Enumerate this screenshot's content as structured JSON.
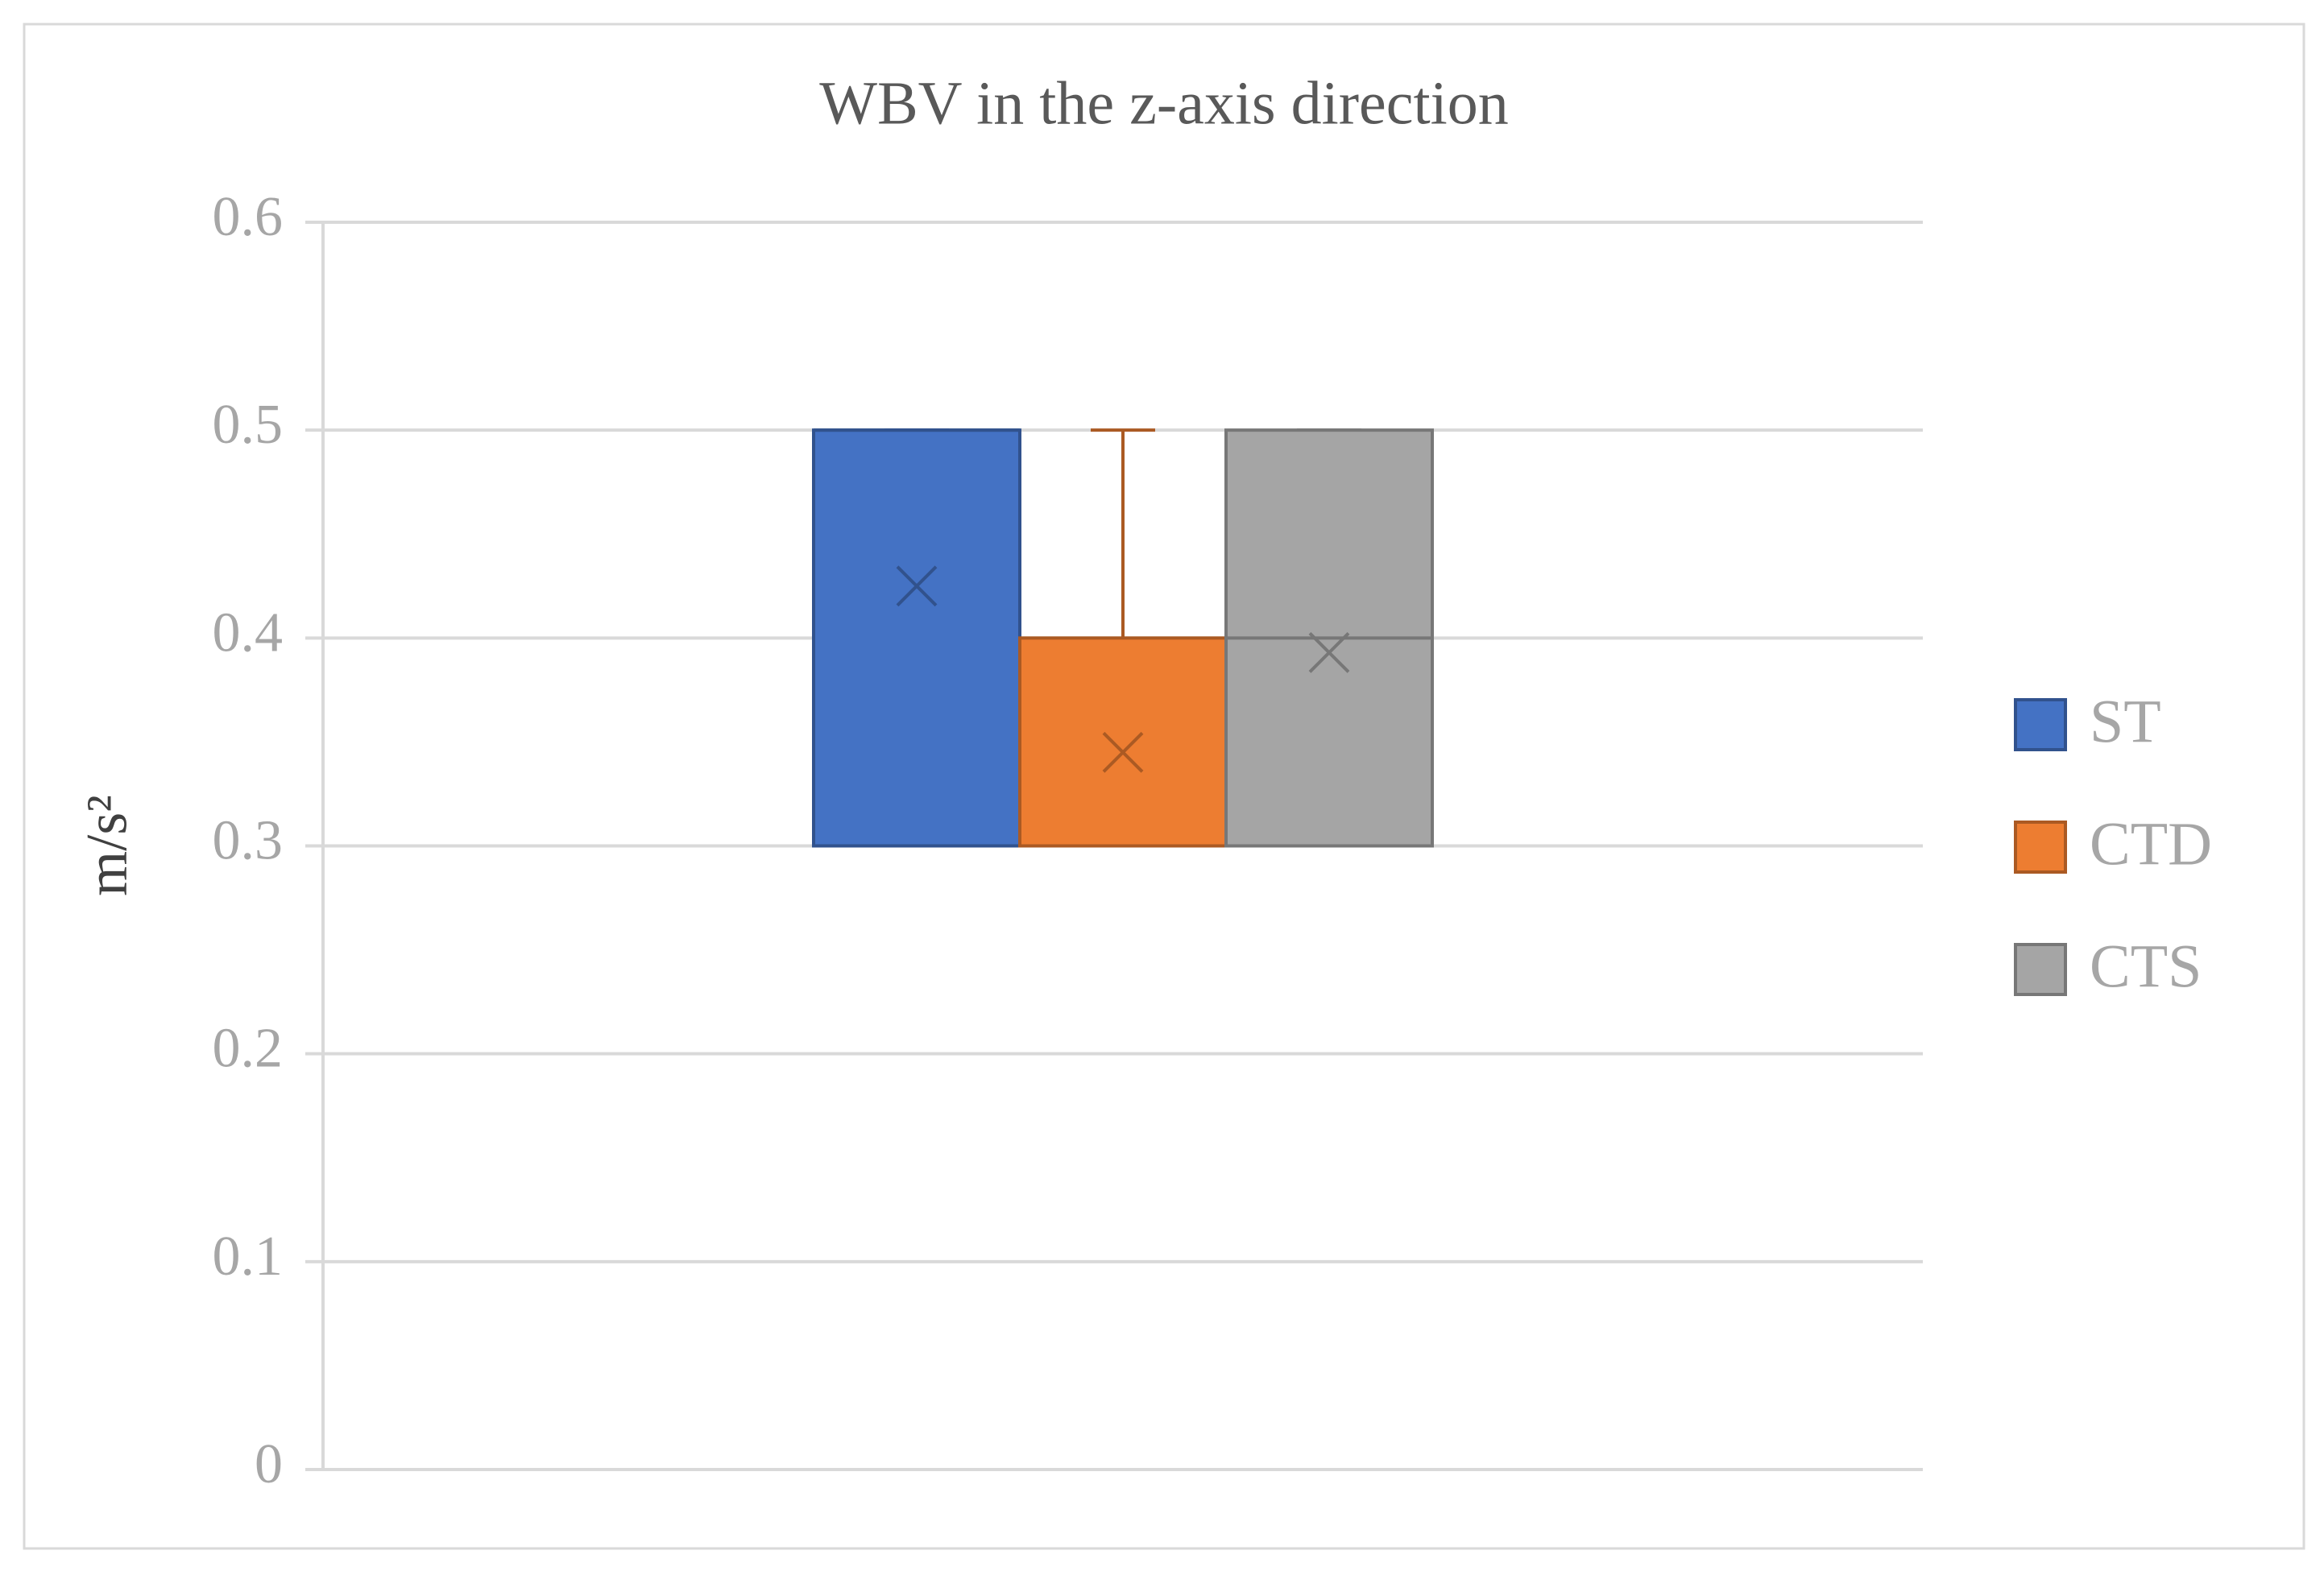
{
  "chart_data": {
    "type": "box",
    "title": "WBV in the z-axis direction",
    "y_label": "m/s²",
    "ylim": [
      0,
      0.6
    ],
    "yticks": [
      0,
      0.1,
      0.2,
      0.3,
      0.4,
      0.5,
      0.6
    ],
    "grid": true,
    "legend": "right",
    "series": [
      {
        "name": "ST",
        "color": "#4472c4",
        "min": 0.3,
        "q1": 0.3,
        "median": 0.5,
        "q3": 0.5,
        "max": 0.5,
        "mean": 0.425
      },
      {
        "name": "CTD",
        "color": "#ed7d31",
        "min": 0.3,
        "q1": 0.3,
        "median": 0.3,
        "q3": 0.4,
        "max": 0.5,
        "mean": 0.345
      },
      {
        "name": "CTS",
        "color": "#a5a5a5",
        "min": 0.3,
        "q1": 0.3,
        "median": 0.4,
        "q3": 0.5,
        "max": 0.5,
        "mean": 0.393
      }
    ]
  }
}
